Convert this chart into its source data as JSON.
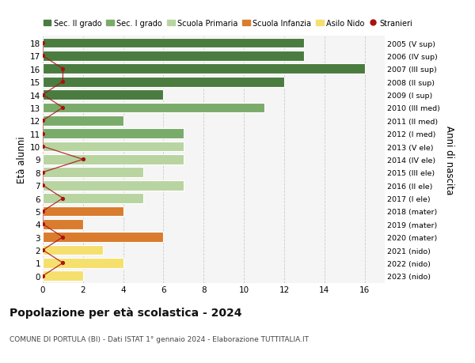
{
  "ages": [
    18,
    17,
    16,
    15,
    14,
    13,
    12,
    11,
    10,
    9,
    8,
    7,
    6,
    5,
    4,
    3,
    2,
    1,
    0
  ],
  "right_labels": [
    "2005 (V sup)",
    "2006 (IV sup)",
    "2007 (III sup)",
    "2008 (II sup)",
    "2009 (I sup)",
    "2010 (III med)",
    "2011 (II med)",
    "2012 (I med)",
    "2013 (V ele)",
    "2014 (IV ele)",
    "2015 (III ele)",
    "2016 (II ele)",
    "2017 (I ele)",
    "2018 (mater)",
    "2019 (mater)",
    "2020 (mater)",
    "2021 (nido)",
    "2022 (nido)",
    "2023 (nido)"
  ],
  "bar_values": [
    13,
    13,
    16,
    12,
    6,
    11,
    4,
    7,
    7,
    7,
    5,
    7,
    5,
    4,
    2,
    6,
    3,
    4,
    2
  ],
  "bar_colors": [
    "#4a7c3f",
    "#4a7c3f",
    "#4a7c3f",
    "#4a7c3f",
    "#4a7c3f",
    "#7aab6a",
    "#7aab6a",
    "#7aab6a",
    "#b8d4a0",
    "#b8d4a0",
    "#b8d4a0",
    "#b8d4a0",
    "#b8d4a0",
    "#d97c2e",
    "#d97c2e",
    "#d97c2e",
    "#f5e06e",
    "#f5e06e",
    "#f5e06e"
  ],
  "stranieri_values": [
    0,
    0,
    1,
    1,
    0,
    1,
    0,
    0,
    0,
    2,
    0,
    0,
    1,
    0,
    0,
    1,
    0,
    1,
    0
  ],
  "legend_labels": [
    "Sec. II grado",
    "Sec. I grado",
    "Scuola Primaria",
    "Scuola Infanzia",
    "Asilo Nido",
    "Stranieri"
  ],
  "legend_colors": [
    "#4a7c3f",
    "#7aab6a",
    "#b8d4a0",
    "#d97c2e",
    "#f5e06e",
    "#aa1111"
  ],
  "ylabel_left": "Età alunni",
  "ylabel_right": "Anni di nascita",
  "title": "Popolazione per età scolastica - 2024",
  "subtitle": "COMUNE DI PORTULA (BI) - Dati ISTAT 1° gennaio 2024 - Elaborazione TUTTITALIA.IT",
  "xlim": [
    0,
    17
  ],
  "xticks": [
    0,
    2,
    4,
    6,
    8,
    10,
    12,
    14,
    16
  ],
  "ylim": [
    -0.55,
    18.55
  ],
  "bg_color": "#ffffff",
  "plot_bg_color": "#f5f5f5",
  "grid_color": "#cccccc"
}
